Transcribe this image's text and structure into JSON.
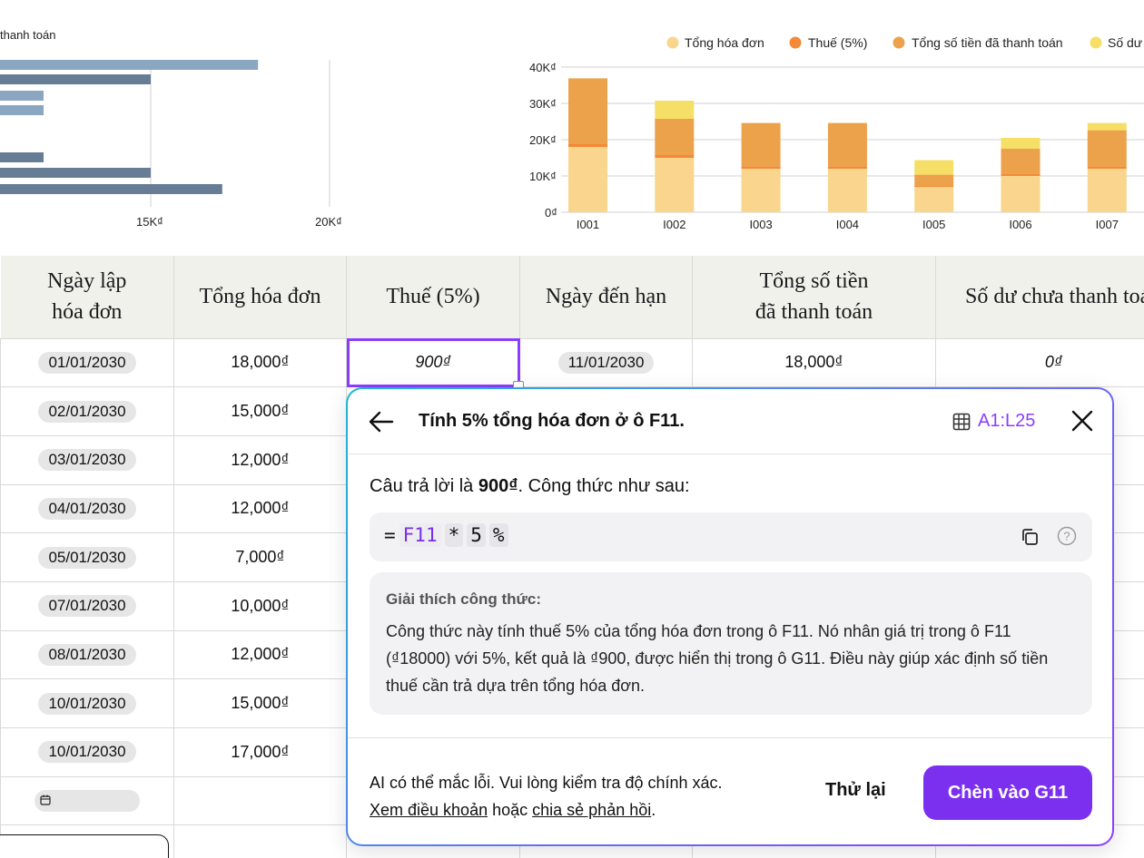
{
  "left_chart": {
    "legend_fragment": "thanh toán",
    "x_ticks": [
      "15K₫",
      "20K₫"
    ]
  },
  "right_chart": {
    "legend": [
      {
        "label": "Tổng hóa đơn",
        "color": "#f9d58e"
      },
      {
        "label": "Thuế (5%)",
        "color": "#f48a37"
      },
      {
        "label": "Tổng số tiền đã thanh toán",
        "color": "#eca24a"
      },
      {
        "label": "Số dư",
        "color": "#f6df66"
      }
    ],
    "y_ticks": [
      "40K₫",
      "30K₫",
      "20K₫",
      "10K₫",
      "0₫"
    ]
  },
  "chart_data": [
    {
      "type": "bar",
      "orientation": "horizontal",
      "x_ticks": [
        "15K₫",
        "20K₫"
      ],
      "series": [
        {
          "values": [
            18000,
            15000,
            12000,
            12000,
            10000,
            15000,
            17000
          ]
        }
      ]
    },
    {
      "type": "bar",
      "stacked": true,
      "categories": [
        "I001",
        "I002",
        "I003",
        "I004",
        "I005",
        "I006",
        "I007"
      ],
      "ylim": [
        0,
        40000
      ],
      "series": [
        {
          "name": "Tổng hóa đơn",
          "values": [
            18000,
            15000,
            12000,
            12000,
            7000,
            10000,
            12000
          ]
        },
        {
          "name": "Thuế (5%)",
          "values": [
            900,
            750,
            600,
            600,
            350,
            500,
            600
          ]
        },
        {
          "name": "Tổng số tiền đã thanh toán",
          "values": [
            18000,
            10000,
            12000,
            12000,
            3000,
            7000,
            10000
          ]
        },
        {
          "name": "Số dư",
          "values": [
            0,
            5000,
            0,
            0,
            4000,
            3000,
            2000
          ]
        }
      ]
    }
  ],
  "table": {
    "headers": [
      "Ngày lập\nhóa đơn",
      "Tổng hóa đơn",
      "Thuế (5%)",
      "Ngày đến hạn",
      "Tổng số tiền\nđã thanh toán",
      "Số dư chưa thanh toán"
    ],
    "rows": [
      {
        "date": "01/01/2030",
        "total": "18,000₫",
        "tax": "900₫",
        "due": "11/01/2030",
        "paid": "18,000₫",
        "balance": "0₫"
      },
      {
        "date": "02/01/2030",
        "total": "15,000₫"
      },
      {
        "date": "03/01/2030",
        "total": "12,000₫"
      },
      {
        "date": "04/01/2030",
        "total": "12,000₫"
      },
      {
        "date": "05/01/2030",
        "total": "7,000₫"
      },
      {
        "date": "07/01/2030",
        "total": "10,000₫"
      },
      {
        "date": "08/01/2030",
        "total": "12,000₫"
      },
      {
        "date": "10/01/2030",
        "total": "15,000₫"
      },
      {
        "date": "10/01/2030",
        "total": "17,000₫"
      }
    ]
  },
  "panel": {
    "title": "Tính 5% tổng hóa đơn ở ô F11.",
    "range": "A1:L25",
    "answer_prefix": "Câu trả lời là ",
    "answer_value": "900₫",
    "answer_suffix": ". Công thức như sau:",
    "formula": {
      "eq": "=",
      "ref": "F11",
      "op": "*",
      "num": "5",
      "pct": "%"
    },
    "explain_title": "Giải thích công thức:",
    "explain_body": "Công thức này tính thuế 5% của tổng hóa đơn trong ô F11. Nó nhân giá trị trong ô F11 (₫18000) với 5%, kết quả là ₫900, được hiển thị trong ô G11. Điều này giúp xác định số tiền thuế cần trả dựa trên tổng hóa đơn.",
    "disclaimer_line1": "AI có thể mắc lỗi. Vui lòng kiểm tra độ chính xác.",
    "terms_link": "Xem điều khoản",
    "or_text": " hoặc ",
    "feedback_link": "chia sẻ phản hồi",
    "period": ".",
    "retry_label": "Thử lại",
    "insert_label": "Chèn vào G11"
  }
}
